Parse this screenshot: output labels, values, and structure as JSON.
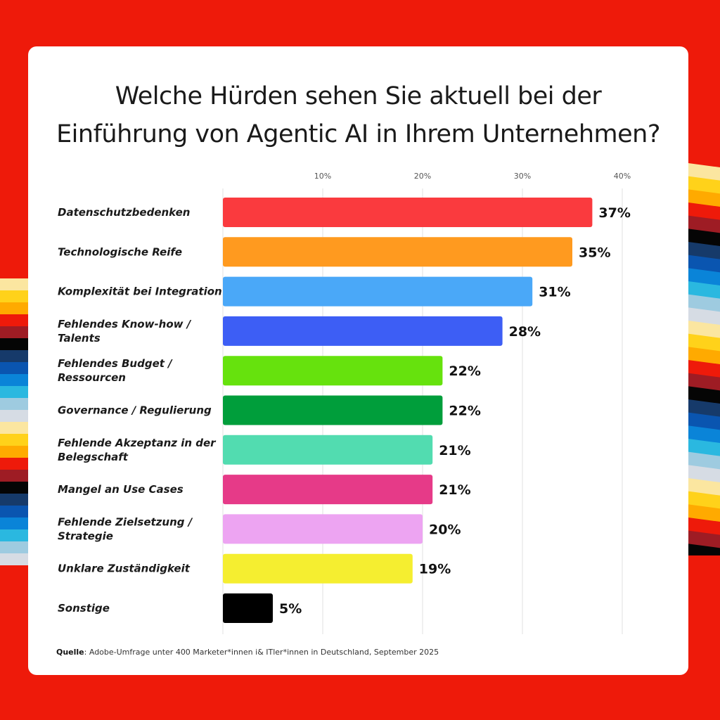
{
  "chart_data": {
    "type": "bar",
    "orientation": "horizontal",
    "title_lines": [
      "Welche Hürden sehen Sie aktuell bei der",
      "Einführung von Agentic AI in Ihrem Unternehmen?"
    ],
    "categories": [
      [
        "Datenschutzbedenken"
      ],
      [
        "Technologische Reife"
      ],
      [
        "Komplexität bei Integration"
      ],
      [
        "Fehlendes Know-how /",
        "Talents"
      ],
      [
        "Fehlendes Budget /",
        "Ressourcen"
      ],
      [
        "Governance / Regulierung"
      ],
      [
        "Fehlende Akzeptanz in der",
        "Belegschaft"
      ],
      [
        "Mangel an Use Cases"
      ],
      [
        "Fehlende Zielsetzung /",
        "Strategie"
      ],
      [
        "Unklare Zuständigkeit"
      ],
      [
        "Sonstige"
      ]
    ],
    "values": [
      37,
      35,
      31,
      28,
      22,
      22,
      21,
      21,
      20,
      19,
      5
    ],
    "value_labels": [
      "37%",
      "35%",
      "31%",
      "28%",
      "22%",
      "22%",
      "21%",
      "21%",
      "20%",
      "19%",
      "5%"
    ],
    "colors": [
      "#fa3a3e",
      "#ff9a1f",
      "#4aa8f8",
      "#3d5ef5",
      "#66e20d",
      "#009e3b",
      "#52dcb0",
      "#e63a88",
      "#eda4f2",
      "#f5ee30",
      "#000000"
    ],
    "xlim": [
      0,
      40
    ],
    "xticks": [
      10,
      20,
      30,
      40
    ],
    "xtick_labels": [
      "10%",
      "20%",
      "30%",
      "40%"
    ],
    "grid": true,
    "legend": "none"
  },
  "source": {
    "label": "Quelle",
    "text": ": Adobe-Umfrage unter 400 Marketer*innen i& ITler*innen in Deutschland, September 2025"
  },
  "background_colors": {
    "page": "#ee1a0a",
    "card": "#ffffff",
    "stripes": [
      "#fbe6a0",
      "#ffd21a",
      "#ffaa00",
      "#ee1a0a",
      "#9e1c24",
      "#050505",
      "#163a6a",
      "#0a55b0",
      "#0a84d8",
      "#2ab8e0",
      "#9ecbe0",
      "#d6dce4"
    ]
  }
}
